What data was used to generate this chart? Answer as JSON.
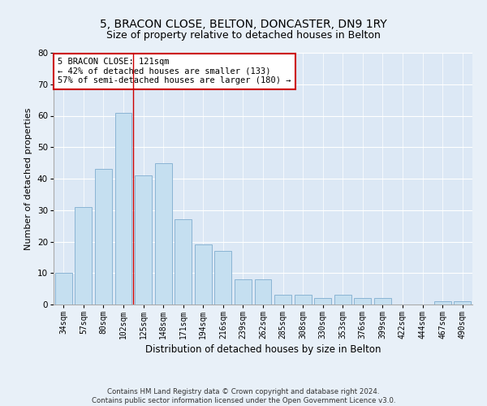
{
  "title1": "5, BRACON CLOSE, BELTON, DONCASTER, DN9 1RY",
  "title2": "Size of property relative to detached houses in Belton",
  "xlabel": "Distribution of detached houses by size in Belton",
  "ylabel": "Number of detached properties",
  "bar_color": "#c5dff0",
  "bar_edge_color": "#8ab4d4",
  "bg_color": "#dce8f5",
  "grid_color": "#ffffff",
  "fig_color": "#e8f0f8",
  "categories": [
    "34sqm",
    "57sqm",
    "80sqm",
    "102sqm",
    "125sqm",
    "148sqm",
    "171sqm",
    "194sqm",
    "216sqm",
    "239sqm",
    "262sqm",
    "285sqm",
    "308sqm",
    "330sqm",
    "353sqm",
    "376sqm",
    "399sqm",
    "422sqm",
    "444sqm",
    "467sqm",
    "490sqm"
  ],
  "values": [
    10,
    31,
    43,
    61,
    41,
    45,
    27,
    19,
    17,
    8,
    8,
    3,
    3,
    2,
    3,
    2,
    2,
    0,
    0,
    1,
    1
  ],
  "ylim": [
    0,
    80
  ],
  "yticks": [
    0,
    10,
    20,
    30,
    40,
    50,
    60,
    70,
    80
  ],
  "annotation_box_text": "5 BRACON CLOSE: 121sqm\n← 42% of detached houses are smaller (133)\n57% of semi-detached houses are larger (180) →",
  "vline_position": 3.5,
  "vline_color": "#cc0000",
  "footer": "Contains HM Land Registry data © Crown copyright and database right 2024.\nContains public sector information licensed under the Open Government Licence v3.0.",
  "annotation_fontsize": 7.5,
  "title1_fontsize": 10,
  "title2_fontsize": 9,
  "xlabel_fontsize": 8.5,
  "ylabel_fontsize": 8,
  "tick_fontsize": 7
}
